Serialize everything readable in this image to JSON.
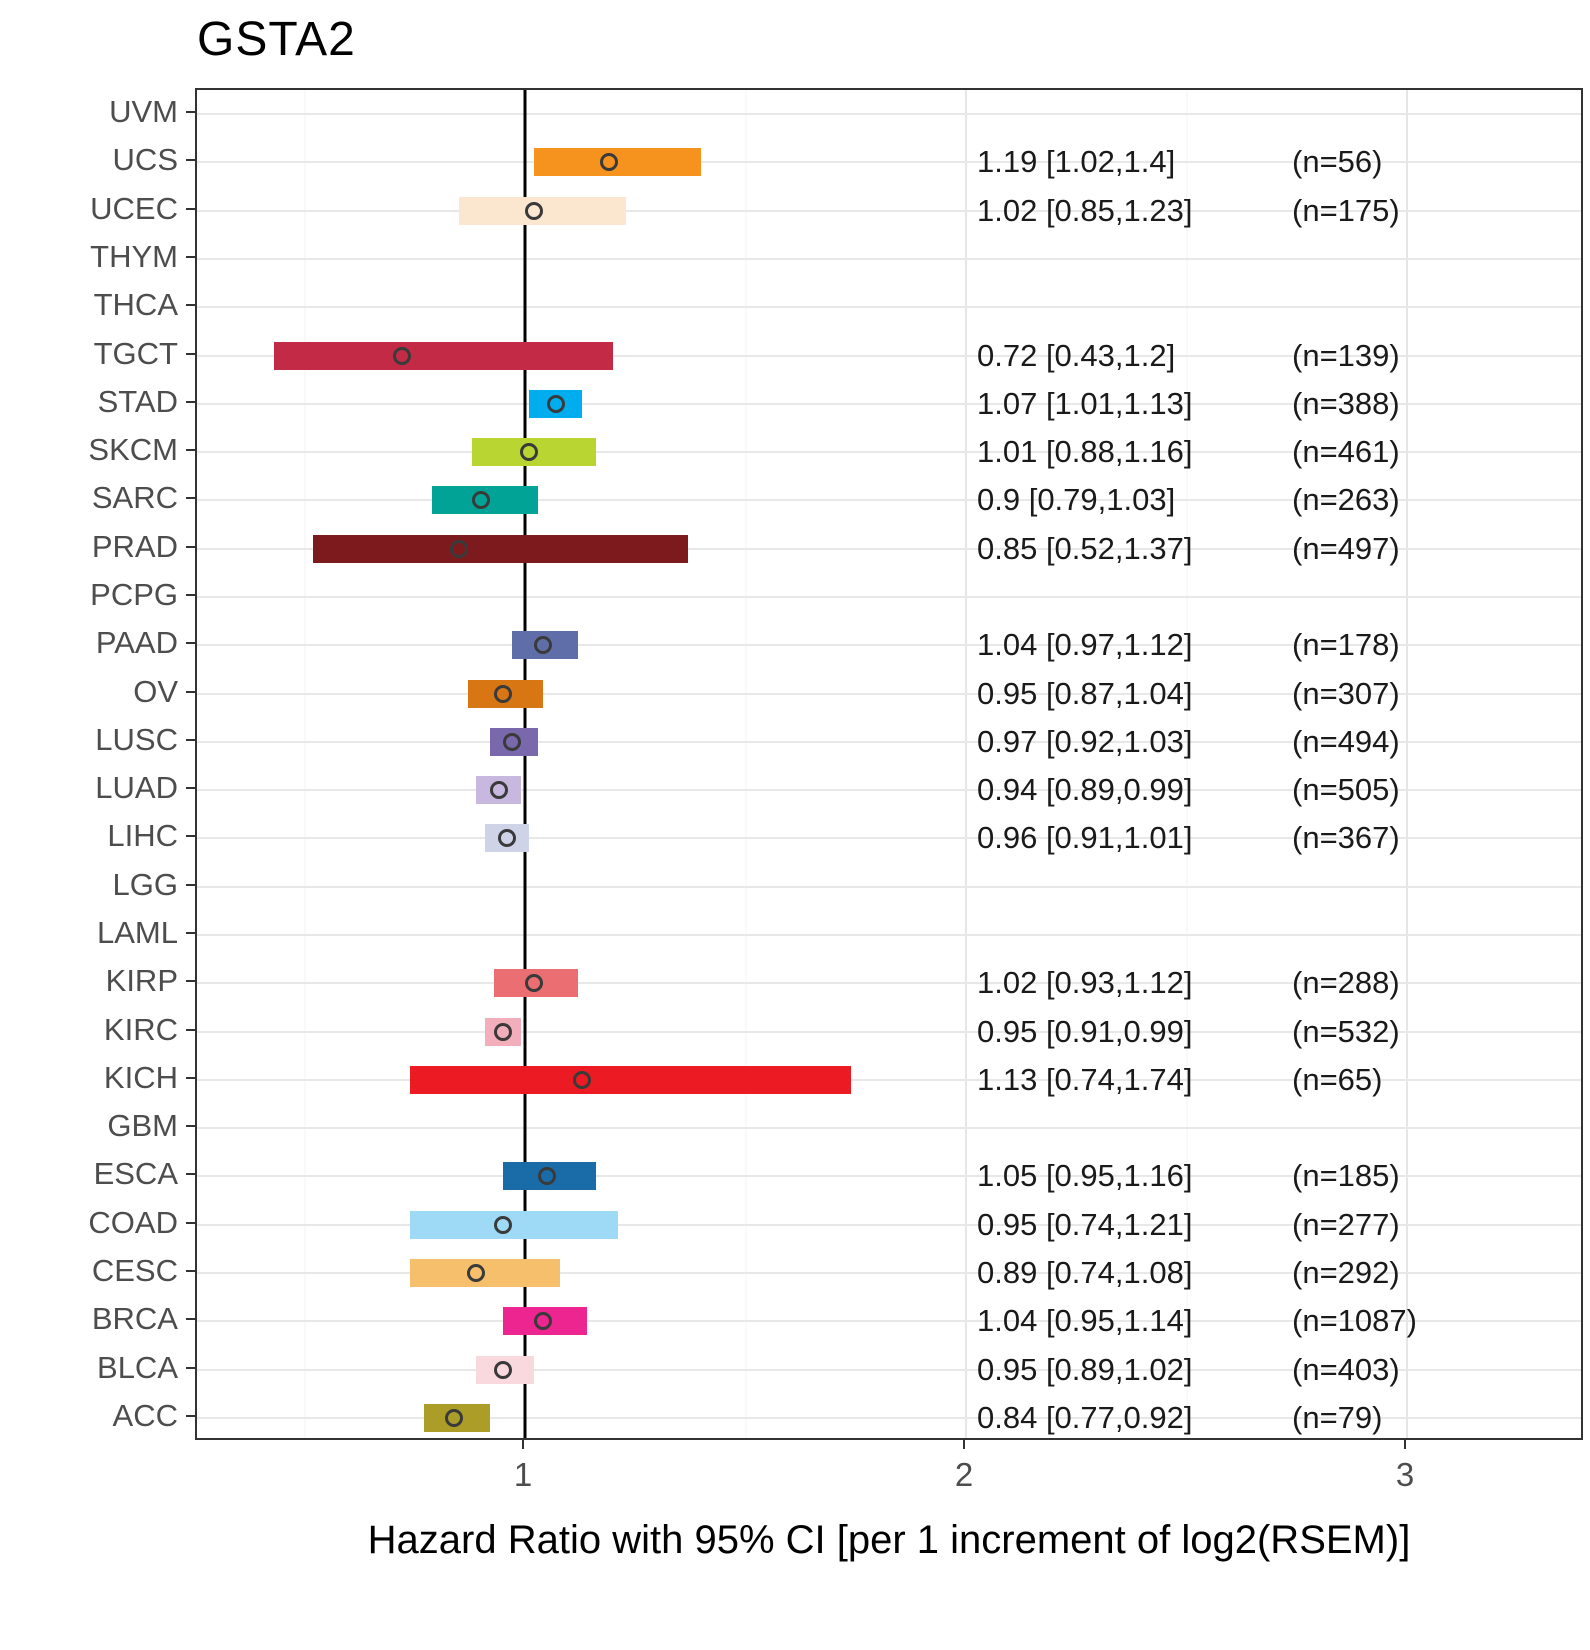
{
  "title": "GSTA2",
  "axes": {
    "x_title": "Hazard Ratio with 95% CI [per 1 increment of log2(RSEM)]",
    "x_ticks": [
      "1",
      "2",
      "3"
    ],
    "x_tick_values": [
      1,
      2,
      3
    ],
    "x_minor_gridlines": [
      0.5,
      1.5,
      2.5
    ],
    "x_range": [
      0.256,
      3.4
    ],
    "reference_line": 1,
    "grid": "on",
    "panel_border_color": "#333333",
    "gridline_color": "#e8e8e8"
  },
  "chart_data": {
    "type": "forest",
    "title": "GSTA2",
    "xlabel": "Hazard Ratio with 95% CI [per 1 increment of log2(RSEM)]",
    "ylabel": "",
    "xlim": [
      0.256,
      3.4
    ],
    "categories_top_to_bottom": [
      "UVM",
      "UCS",
      "UCEC",
      "THYM",
      "THCA",
      "TGCT",
      "STAD",
      "SKCM",
      "SARC",
      "PRAD",
      "PCPG",
      "PAAD",
      "OV",
      "LUSC",
      "LUAD",
      "LIHC",
      "LGG",
      "LAML",
      "KIRP",
      "KIRC",
      "KICH",
      "GBM",
      "ESCA",
      "COAD",
      "CESC",
      "BRCA",
      "BLCA",
      "ACC"
    ],
    "rows": [
      {
        "cancer": "UVM",
        "hr": null,
        "lo": null,
        "hi": null,
        "n": null,
        "hr_label": "",
        "n_label": "",
        "color": null
      },
      {
        "cancer": "UCS",
        "hr": 1.19,
        "lo": 1.02,
        "hi": 1.4,
        "n": 56,
        "hr_label": "1.19 [1.02,1.4]",
        "n_label": "(n=56)",
        "color": "#F6921E"
      },
      {
        "cancer": "UCEC",
        "hr": 1.02,
        "lo": 0.85,
        "hi": 1.23,
        "n": 175,
        "hr_label": "1.02 [0.85,1.23]",
        "n_label": "(n=175)",
        "color": "#FBE6CF"
      },
      {
        "cancer": "THYM",
        "hr": null,
        "lo": null,
        "hi": null,
        "n": null,
        "hr_label": "",
        "n_label": "",
        "color": null
      },
      {
        "cancer": "THCA",
        "hr": null,
        "lo": null,
        "hi": null,
        "n": null,
        "hr_label": "",
        "n_label": "",
        "color": null
      },
      {
        "cancer": "TGCT",
        "hr": 0.72,
        "lo": 0.43,
        "hi": 1.2,
        "n": 139,
        "hr_label": "0.72 [0.43,1.2]",
        "n_label": "(n=139)",
        "color": "#C22A45"
      },
      {
        "cancer": "STAD",
        "hr": 1.07,
        "lo": 1.01,
        "hi": 1.13,
        "n": 388,
        "hr_label": "1.07 [1.01,1.13]",
        "n_label": "(n=388)",
        "color": "#00ADEF"
      },
      {
        "cancer": "SKCM",
        "hr": 1.01,
        "lo": 0.88,
        "hi": 1.16,
        "n": 461,
        "hr_label": "1.01 [0.88,1.16]",
        "n_label": "(n=461)",
        "color": "#B9D532"
      },
      {
        "cancer": "SARC",
        "hr": 0.9,
        "lo": 0.79,
        "hi": 1.03,
        "n": 263,
        "hr_label": "0.9 [0.79,1.03]",
        "n_label": "(n=263)",
        "color": "#00A396"
      },
      {
        "cancer": "PRAD",
        "hr": 0.85,
        "lo": 0.52,
        "hi": 1.37,
        "n": 497,
        "hr_label": "0.85 [0.52,1.37]",
        "n_label": "(n=497)",
        "color": "#7C1A1D"
      },
      {
        "cancer": "PCPG",
        "hr": null,
        "lo": null,
        "hi": null,
        "n": null,
        "hr_label": "",
        "n_label": "",
        "color": null
      },
      {
        "cancer": "PAAD",
        "hr": 1.04,
        "lo": 0.97,
        "hi": 1.12,
        "n": 178,
        "hr_label": "1.04 [0.97,1.12]",
        "n_label": "(n=178)",
        "color": "#5F6EA8"
      },
      {
        "cancer": "OV",
        "hr": 0.95,
        "lo": 0.87,
        "hi": 1.04,
        "n": 307,
        "hr_label": "0.95 [0.87,1.04]",
        "n_label": "(n=307)",
        "color": "#D87614"
      },
      {
        "cancer": "LUSC",
        "hr": 0.97,
        "lo": 0.92,
        "hi": 1.03,
        "n": 494,
        "hr_label": "0.97 [0.92,1.03]",
        "n_label": "(n=494)",
        "color": "#7968AC"
      },
      {
        "cancer": "LUAD",
        "hr": 0.94,
        "lo": 0.89,
        "hi": 0.99,
        "n": 505,
        "hr_label": "0.94 [0.89,0.99]",
        "n_label": "(n=505)",
        "color": "#C8B8E0"
      },
      {
        "cancer": "LIHC",
        "hr": 0.96,
        "lo": 0.91,
        "hi": 1.01,
        "n": 367,
        "hr_label": "0.96 [0.91,1.01]",
        "n_label": "(n=367)",
        "color": "#CED3E8"
      },
      {
        "cancer": "LGG",
        "hr": null,
        "lo": null,
        "hi": null,
        "n": null,
        "hr_label": "",
        "n_label": "",
        "color": null
      },
      {
        "cancer": "LAML",
        "hr": null,
        "lo": null,
        "hi": null,
        "n": null,
        "hr_label": "",
        "n_label": "",
        "color": null
      },
      {
        "cancer": "KIRP",
        "hr": 1.02,
        "lo": 0.93,
        "hi": 1.12,
        "n": 288,
        "hr_label": "1.02 [0.93,1.12]",
        "n_label": "(n=288)",
        "color": "#EA6E72"
      },
      {
        "cancer": "KIRC",
        "hr": 0.95,
        "lo": 0.91,
        "hi": 0.99,
        "n": 532,
        "hr_label": "0.95 [0.91,0.99]",
        "n_label": "(n=532)",
        "color": "#F3AEBC"
      },
      {
        "cancer": "KICH",
        "hr": 1.13,
        "lo": 0.74,
        "hi": 1.74,
        "n": 65,
        "hr_label": "1.13 [0.74,1.74]",
        "n_label": "(n=65)",
        "color": "#EC1B23"
      },
      {
        "cancer": "GBM",
        "hr": null,
        "lo": null,
        "hi": null,
        "n": null,
        "hr_label": "",
        "n_label": "",
        "color": null
      },
      {
        "cancer": "ESCA",
        "hr": 1.05,
        "lo": 0.95,
        "hi": 1.16,
        "n": 185,
        "hr_label": "1.05 [0.95,1.16]",
        "n_label": "(n=185)",
        "color": "#1A6CA8"
      },
      {
        "cancer": "COAD",
        "hr": 0.95,
        "lo": 0.74,
        "hi": 1.21,
        "n": 277,
        "hr_label": "0.95 [0.74,1.21]",
        "n_label": "(n=277)",
        "color": "#9ED9F5"
      },
      {
        "cancer": "CESC",
        "hr": 0.89,
        "lo": 0.74,
        "hi": 1.08,
        "n": 292,
        "hr_label": "0.89 [0.74,1.08]",
        "n_label": "(n=292)",
        "color": "#F6BF6C"
      },
      {
        "cancer": "BRCA",
        "hr": 1.04,
        "lo": 0.95,
        "hi": 1.14,
        "n": 1087,
        "hr_label": "1.04 [0.95,1.14]",
        "n_label": "(n=1087)",
        "color": "#EC2590"
      },
      {
        "cancer": "BLCA",
        "hr": 0.95,
        "lo": 0.89,
        "hi": 1.02,
        "n": 403,
        "hr_label": "0.95 [0.89,1.02]",
        "n_label": "(n=403)",
        "color": "#F9D8DE"
      },
      {
        "cancer": "ACC",
        "hr": 0.84,
        "lo": 0.77,
        "hi": 0.92,
        "n": 79,
        "hr_label": "0.84 [0.77,0.92]",
        "n_label": "(n=79)",
        "color": "#AC9D28"
      }
    ],
    "marker": {
      "shape": "open-circle",
      "outline_color": "#3a3a3a"
    },
    "annotation_columns": {
      "hr_ci_x": 0.56,
      "n_x": 0.79
    },
    "legend": "none"
  }
}
